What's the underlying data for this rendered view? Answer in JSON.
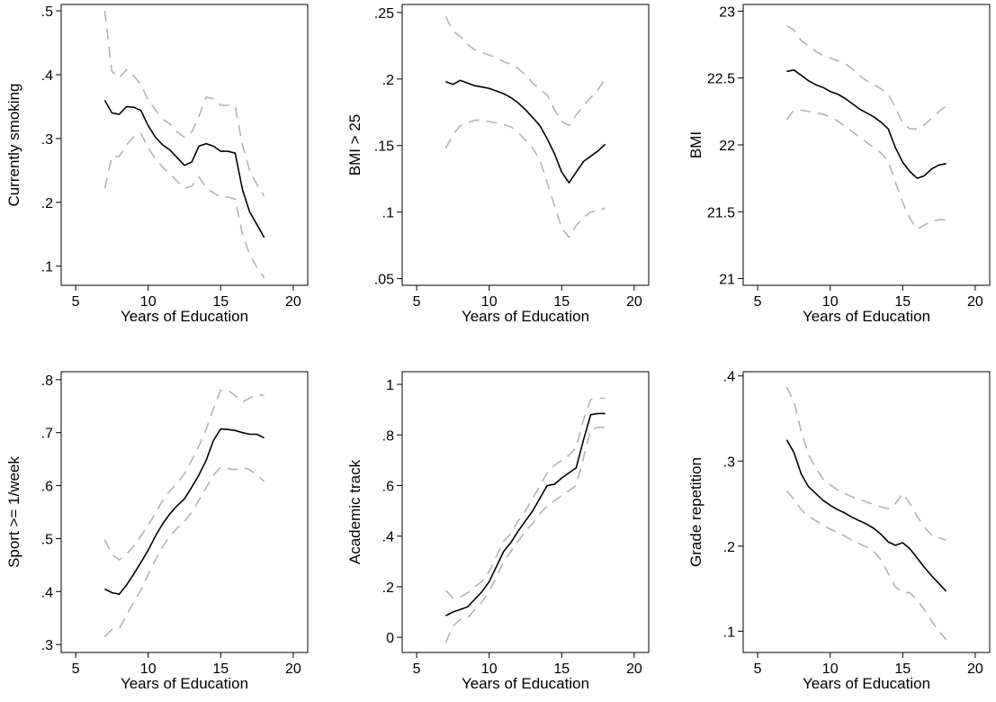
{
  "figure": {
    "colors": {
      "estimate": "#000000",
      "confidence_band": "#b3b3b3",
      "frame": "#000000"
    }
  },
  "chart_data": [
    {
      "type": "line",
      "xlabel": "Years of Education",
      "ylabel": "Currently smoking",
      "xlim": [
        4,
        21
      ],
      "ylim": [
        0.07,
        0.51
      ],
      "xticks": [
        5,
        10,
        15,
        20
      ],
      "xtick_labels": [
        "5",
        "10",
        "15",
        "20"
      ],
      "yticks": [
        0.1,
        0.2,
        0.3,
        0.4,
        0.5
      ],
      "ytick_labels": [
        ".1",
        ".2",
        ".3",
        ".4",
        ".5"
      ],
      "x": [
        7,
        7.5,
        8,
        8.5,
        9,
        9.5,
        10,
        10.5,
        11,
        11.5,
        12,
        12.5,
        13,
        13.5,
        14,
        14.5,
        15,
        15.5,
        16,
        16.5,
        17,
        17.5,
        18
      ],
      "series": [
        {
          "role": "estimate",
          "values": [
            0.36,
            0.34,
            0.338,
            0.35,
            0.349,
            0.344,
            0.32,
            0.302,
            0.29,
            0.282,
            0.27,
            0.258,
            0.263,
            0.288,
            0.292,
            0.288,
            0.28,
            0.28,
            0.277,
            0.22,
            0.185,
            0.165,
            0.145
          ]
        },
        {
          "role": "upper",
          "values": [
            0.5,
            0.405,
            0.395,
            0.408,
            0.398,
            0.385,
            0.36,
            0.345,
            0.33,
            0.323,
            0.31,
            0.302,
            0.31,
            0.335,
            0.365,
            0.362,
            0.352,
            0.352,
            0.35,
            0.29,
            0.25,
            0.228,
            0.21
          ]
        },
        {
          "role": "lower",
          "values": [
            0.222,
            0.272,
            0.272,
            0.29,
            0.303,
            0.308,
            0.285,
            0.268,
            0.255,
            0.245,
            0.233,
            0.222,
            0.225,
            0.24,
            0.222,
            0.215,
            0.208,
            0.208,
            0.205,
            0.15,
            0.118,
            0.098,
            0.082
          ]
        }
      ]
    },
    {
      "type": "line",
      "xlabel": "Years of Education",
      "ylabel": "BMI > 25",
      "xlim": [
        4,
        21
      ],
      "ylim": [
        0.045,
        0.256
      ],
      "xticks": [
        5,
        10,
        15,
        20
      ],
      "xtick_labels": [
        "5",
        "10",
        "15",
        "20"
      ],
      "yticks": [
        0.05,
        0.1,
        0.15,
        0.2,
        0.25
      ],
      "ytick_labels": [
        ".05",
        ".1",
        ".15",
        ".2",
        ".25"
      ],
      "x": [
        7,
        7.5,
        8,
        8.5,
        9,
        9.5,
        10,
        10.5,
        11,
        11.5,
        12,
        12.5,
        13,
        13.5,
        14,
        14.5,
        15,
        15.5,
        16,
        16.5,
        17,
        17.5,
        18
      ],
      "series": [
        {
          "role": "estimate",
          "values": [
            0.198,
            0.196,
            0.199,
            0.197,
            0.195,
            0.194,
            0.193,
            0.191,
            0.189,
            0.186,
            0.182,
            0.177,
            0.171,
            0.165,
            0.155,
            0.144,
            0.13,
            0.122,
            0.13,
            0.138,
            0.142,
            0.146,
            0.151
          ]
        },
        {
          "role": "upper",
          "values": [
            0.247,
            0.236,
            0.232,
            0.226,
            0.222,
            0.22,
            0.218,
            0.216,
            0.213,
            0.211,
            0.208,
            0.203,
            0.197,
            0.192,
            0.188,
            0.177,
            0.168,
            0.165,
            0.173,
            0.18,
            0.186,
            0.192,
            0.2
          ]
        },
        {
          "role": "lower",
          "values": [
            0.148,
            0.158,
            0.165,
            0.167,
            0.169,
            0.169,
            0.168,
            0.167,
            0.166,
            0.164,
            0.16,
            0.154,
            0.148,
            0.139,
            0.122,
            0.105,
            0.088,
            0.081,
            0.09,
            0.096,
            0.1,
            0.101,
            0.103
          ]
        }
      ]
    },
    {
      "type": "line",
      "xlabel": "Years of Education",
      "ylabel": "BMI",
      "xlim": [
        4,
        21
      ],
      "ylim": [
        20.95,
        23.05
      ],
      "xticks": [
        5,
        10,
        15,
        20
      ],
      "xtick_labels": [
        "5",
        "10",
        "15",
        "20"
      ],
      "yticks": [
        21,
        21.5,
        22,
        22.5,
        23
      ],
      "ytick_labels": [
        "21",
        "21.5",
        "22",
        "22.5",
        "23"
      ],
      "x": [
        7,
        7.5,
        8,
        8.5,
        9,
        9.5,
        10,
        10.5,
        11,
        11.5,
        12,
        12.5,
        13,
        13.5,
        14,
        14.5,
        15,
        15.5,
        16,
        16.5,
        17,
        17.5,
        18
      ],
      "series": [
        {
          "role": "estimate",
          "values": [
            22.55,
            22.56,
            22.52,
            22.48,
            22.45,
            22.43,
            22.4,
            22.38,
            22.35,
            22.31,
            22.27,
            22.24,
            22.21,
            22.17,
            22.12,
            21.98,
            21.87,
            21.8,
            21.75,
            21.77,
            21.82,
            21.85,
            21.86
          ]
        },
        {
          "role": "upper",
          "values": [
            22.89,
            22.86,
            22.78,
            22.74,
            22.7,
            22.67,
            22.65,
            22.63,
            22.61,
            22.57,
            22.52,
            22.48,
            22.45,
            22.42,
            22.38,
            22.28,
            22.16,
            22.12,
            22.12,
            22.15,
            22.2,
            22.25,
            22.29
          ]
        },
        {
          "role": "lower",
          "values": [
            22.19,
            22.26,
            22.26,
            22.25,
            22.24,
            22.23,
            22.21,
            22.18,
            22.14,
            22.1,
            22.06,
            22.02,
            21.98,
            21.94,
            21.88,
            21.72,
            21.57,
            21.45,
            21.37,
            21.4,
            21.43,
            21.44,
            21.44
          ]
        }
      ]
    },
    {
      "type": "line",
      "xlabel": "Years of Education",
      "ylabel": "Sport >= 1/week",
      "xlim": [
        4,
        21
      ],
      "ylim": [
        0.285,
        0.815
      ],
      "xticks": [
        5,
        10,
        15,
        20
      ],
      "xtick_labels": [
        "5",
        "10",
        "15",
        "20"
      ],
      "yticks": [
        0.3,
        0.4,
        0.5,
        0.6,
        0.7,
        0.8
      ],
      "ytick_labels": [
        ".3",
        ".4",
        ".5",
        ".6",
        ".7",
        ".8"
      ],
      "x": [
        7,
        7.5,
        8,
        8.5,
        9,
        9.5,
        10,
        10.5,
        11,
        11.5,
        12,
        12.5,
        13,
        13.5,
        14,
        14.5,
        15,
        15.5,
        16,
        16.5,
        17,
        17.5,
        18
      ],
      "series": [
        {
          "role": "estimate",
          "values": [
            0.405,
            0.398,
            0.395,
            0.412,
            0.433,
            0.455,
            0.478,
            0.505,
            0.528,
            0.547,
            0.562,
            0.575,
            0.597,
            0.62,
            0.648,
            0.685,
            0.707,
            0.706,
            0.704,
            0.7,
            0.697,
            0.697,
            0.69
          ]
        },
        {
          "role": "upper",
          "values": [
            0.498,
            0.47,
            0.46,
            0.47,
            0.486,
            0.505,
            0.525,
            0.548,
            0.572,
            0.59,
            0.605,
            0.622,
            0.648,
            0.675,
            0.706,
            0.745,
            0.78,
            0.78,
            0.77,
            0.758,
            0.765,
            0.772,
            0.77
          ]
        },
        {
          "role": "lower",
          "values": [
            0.315,
            0.328,
            0.33,
            0.355,
            0.38,
            0.403,
            0.432,
            0.46,
            0.485,
            0.505,
            0.52,
            0.532,
            0.55,
            0.572,
            0.596,
            0.62,
            0.635,
            0.632,
            0.63,
            0.635,
            0.63,
            0.62,
            0.608
          ]
        }
      ]
    },
    {
      "type": "line",
      "xlabel": "Years of Education",
      "ylabel": "Academic track",
      "xlim": [
        4,
        21
      ],
      "ylim": [
        -0.06,
        1.05
      ],
      "xticks": [
        5,
        10,
        15,
        20
      ],
      "xtick_labels": [
        "5",
        "10",
        "15",
        "20"
      ],
      "yticks": [
        0,
        0.2,
        0.4,
        0.6,
        0.8,
        1
      ],
      "ytick_labels": [
        "0",
        ".2",
        ".4",
        ".6",
        ".8",
        "1"
      ],
      "x": [
        7,
        7.5,
        8,
        8.5,
        9,
        9.5,
        10,
        10.5,
        11,
        11.5,
        12,
        12.5,
        13,
        13.5,
        14,
        14.5,
        15,
        15.5,
        16,
        16.5,
        17,
        17.5,
        18
      ],
      "series": [
        {
          "role": "estimate",
          "values": [
            0.085,
            0.1,
            0.11,
            0.12,
            0.15,
            0.18,
            0.22,
            0.28,
            0.34,
            0.375,
            0.42,
            0.46,
            0.5,
            0.55,
            0.6,
            0.605,
            0.63,
            0.65,
            0.67,
            0.78,
            0.88,
            0.885,
            0.885
          ]
        },
        {
          "role": "upper",
          "values": [
            0.185,
            0.155,
            0.16,
            0.175,
            0.2,
            0.22,
            0.26,
            0.32,
            0.38,
            0.41,
            0.46,
            0.5,
            0.55,
            0.6,
            0.65,
            0.68,
            0.7,
            0.72,
            0.75,
            0.86,
            0.94,
            0.945,
            0.945
          ]
        },
        {
          "role": "lower",
          "values": [
            -0.02,
            0.045,
            0.07,
            0.075,
            0.11,
            0.14,
            0.18,
            0.24,
            0.3,
            0.34,
            0.38,
            0.42,
            0.45,
            0.49,
            0.52,
            0.54,
            0.56,
            0.58,
            0.6,
            0.71,
            0.82,
            0.83,
            0.83
          ]
        }
      ]
    },
    {
      "type": "line",
      "xlabel": "Years of Education",
      "ylabel": "Grade repetition",
      "xlim": [
        4,
        21
      ],
      "ylim": [
        0.075,
        0.405
      ],
      "xticks": [
        5,
        10,
        15,
        20
      ],
      "xtick_labels": [
        "5",
        "10",
        "15",
        "20"
      ],
      "yticks": [
        0.1,
        0.2,
        0.3,
        0.4
      ],
      "ytick_labels": [
        ".1",
        ".2",
        ".3",
        ".4"
      ],
      "x": [
        7,
        7.5,
        8,
        8.5,
        9,
        9.5,
        10,
        10.5,
        11,
        11.5,
        12,
        12.5,
        13,
        13.5,
        14,
        14.5,
        15,
        15.5,
        16,
        16.5,
        17,
        17.5,
        18
      ],
      "series": [
        {
          "role": "estimate",
          "values": [
            0.325,
            0.31,
            0.285,
            0.27,
            0.262,
            0.254,
            0.248,
            0.243,
            0.239,
            0.234,
            0.23,
            0.226,
            0.221,
            0.214,
            0.205,
            0.201,
            0.204,
            0.197,
            0.186,
            0.175,
            0.165,
            0.156,
            0.147
          ]
        },
        {
          "role": "upper",
          "values": [
            0.387,
            0.37,
            0.335,
            0.308,
            0.292,
            0.279,
            0.272,
            0.266,
            0.262,
            0.258,
            0.255,
            0.252,
            0.249,
            0.246,
            0.244,
            0.25,
            0.262,
            0.25,
            0.235,
            0.222,
            0.213,
            0.21,
            0.207
          ]
        },
        {
          "role": "lower",
          "values": [
            0.265,
            0.255,
            0.243,
            0.235,
            0.23,
            0.225,
            0.22,
            0.216,
            0.212,
            0.207,
            0.203,
            0.199,
            0.194,
            0.184,
            0.168,
            0.152,
            0.146,
            0.145,
            0.137,
            0.125,
            0.112,
            0.1,
            0.09
          ]
        }
      ]
    }
  ]
}
